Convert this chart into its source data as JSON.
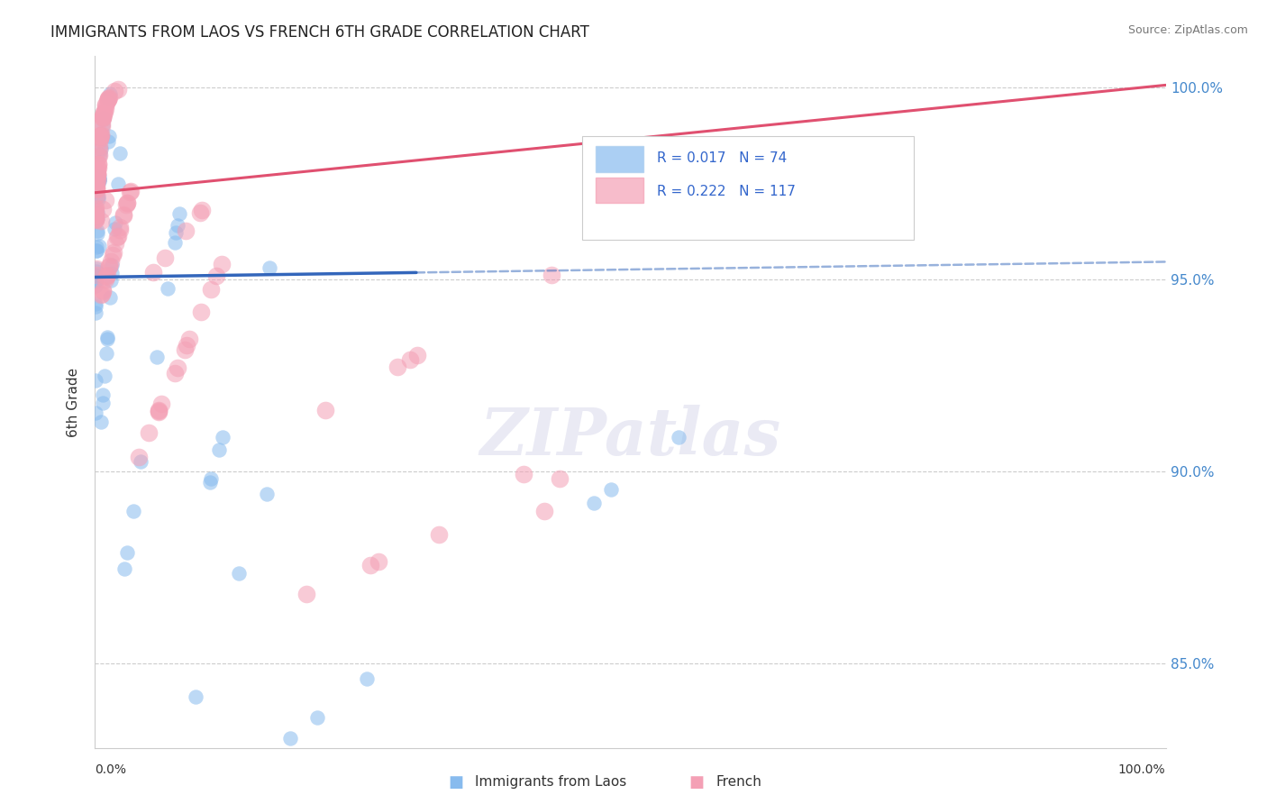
{
  "title": "IMMIGRANTS FROM LAOS VS FRENCH 6TH GRADE CORRELATION CHART",
  "source": "Source: ZipAtlas.com",
  "ylabel": "6th Grade",
  "xmin": 0.0,
  "xmax": 1.0,
  "ymin": 0.828,
  "ymax": 1.008,
  "yticks": [
    0.85,
    0.9,
    0.95,
    1.0
  ],
  "ytick_labels": [
    "85.0%",
    "90.0%",
    "95.0%",
    "100.0%"
  ],
  "blue_R": 0.017,
  "blue_N": 74,
  "pink_R": 0.222,
  "pink_N": 117,
  "blue_color": "#88bbee",
  "pink_color": "#f4a0b5",
  "blue_line_color": "#3366bb",
  "pink_line_color": "#e05070",
  "blue_line_solid_end": 0.3,
  "blue_line_y0": 0.9505,
  "blue_line_y1": 0.9545,
  "pink_line_y0": 0.9725,
  "pink_line_y1": 1.0005,
  "legend_blue_label": "Immigrants from Laos",
  "legend_pink_label": "French",
  "watermark": "ZIPatlas",
  "title_fontsize": 12,
  "legend_fontsize": 11,
  "source_fontsize": 9
}
